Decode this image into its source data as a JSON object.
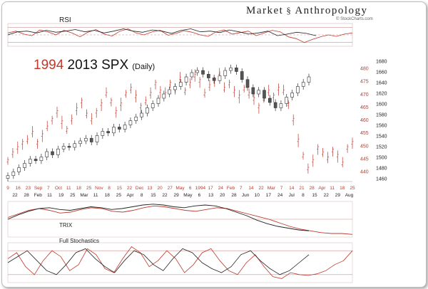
{
  "brand": {
    "left": "Market",
    "right": "Anthropology",
    "source": "© StockCharts.com"
  },
  "colors": {
    "y1994": "#c0392b",
    "y2013": "#222222",
    "grid": "#c9a0a0",
    "candle_up": "#ffffff",
    "candle_down": "#555555"
  },
  "chart_data": [
    {
      "type": "line",
      "title": "RSI",
      "series": [
        {
          "name": "1994",
          "values": [
            55,
            60,
            52,
            48,
            63,
            58,
            50,
            62,
            55,
            45,
            57,
            64,
            52,
            47,
            60,
            66,
            55,
            50,
            58,
            62,
            49,
            54,
            61,
            57,
            50,
            46,
            58,
            63,
            52,
            56,
            60,
            48,
            55,
            62,
            58,
            45,
            40,
            30,
            38,
            45,
            50,
            46,
            52,
            55
          ]
        },
        {
          "name": "2013",
          "values": [
            50,
            58,
            60,
            55,
            62,
            57,
            60,
            64,
            58,
            62,
            55,
            60,
            66,
            60,
            57,
            63,
            60,
            54,
            62,
            66,
            58,
            60,
            56,
            63,
            58,
            52,
            55,
            60,
            48,
            52,
            57,
            54,
            48
          ]
        }
      ],
      "levels": [
        70,
        50,
        30
      ],
      "ylim": [
        20,
        80
      ]
    },
    {
      "type": "candlestick",
      "title_parts": [
        "1994",
        "2013 SPX",
        "(Daily)"
      ],
      "x_ticks_top": [
        "9",
        "16",
        "23",
        "Sep",
        "7",
        "Oct",
        "11",
        "18",
        "25",
        "Nov",
        "8",
        "15",
        "22",
        "Dec",
        "13",
        "20",
        "27",
        "May",
        "6",
        "1994",
        "17",
        "24",
        "Feb",
        "7",
        "14",
        "22",
        "Mar",
        "7",
        "14",
        "21",
        "28",
        "Apr",
        "11",
        "18",
        "25"
      ],
      "x_ticks_bottom": [
        "22",
        "28",
        "Feb",
        "11",
        "19",
        "25",
        "Mar",
        "11",
        "18",
        "25",
        "Apr",
        "8",
        "15",
        "22",
        "29",
        "May",
        "6",
        "13",
        "20",
        "28",
        "Jun",
        "10",
        "17",
        "24",
        "Jul",
        "8",
        "15",
        "22",
        "29",
        "Aug"
      ],
      "y_left": {
        "ticks": [
          480,
          475,
          470,
          465,
          460,
          455,
          450,
          445,
          440
        ],
        "label_series": "1994",
        "ylim": [
          436,
          484
        ]
      },
      "y_right": {
        "ticks": [
          1680,
          1660,
          1640,
          1620,
          1600,
          1580,
          1560,
          1540,
          1520,
          1500,
          1480,
          1460
        ],
        "label_series": "2013",
        "ylim": [
          1454,
          1686
        ]
      },
      "series_1994": [
        444,
        447,
        449,
        451,
        452,
        455,
        451,
        454,
        457,
        460,
        463,
        459,
        456,
        460,
        464,
        467,
        462,
        460,
        463,
        466,
        470,
        467,
        463,
        466,
        470,
        472,
        469,
        465,
        467,
        470,
        474,
        471,
        470,
        474,
        472,
        476,
        471,
        474,
        477,
        475,
        470,
        473,
        475,
        478,
        472,
        474,
        471,
        469,
        472,
        470,
        468,
        465,
        468,
        471,
        469,
        472,
        471,
        466,
        460,
        452,
        446,
        441,
        444,
        449,
        447,
        445,
        448,
        446,
        443,
        449,
        451
      ],
      "series_2013": [
        1465,
        1472,
        1480,
        1488,
        1496,
        1493,
        1500,
        1510,
        1504,
        1515,
        1520,
        1518,
        1525,
        1530,
        1535,
        1528,
        1540,
        1548,
        1545,
        1556,
        1552,
        1560,
        1568,
        1575,
        1582,
        1592,
        1600,
        1610,
        1618,
        1626,
        1632,
        1640,
        1650,
        1658,
        1662,
        1655,
        1648,
        1643,
        1652,
        1662,
        1667,
        1660,
        1645,
        1630,
        1618,
        1625,
        1610,
        1602,
        1592,
        1600,
        1612,
        1620,
        1632,
        1640,
        1650
      ]
    },
    {
      "type": "line",
      "title": "TRIX",
      "series": [
        {
          "name": "1994",
          "values": [
            0.2,
            0.6,
            1.0,
            1.2,
            1.0,
            0.7,
            0.8,
            1.1,
            1.3,
            1.2,
            0.9,
            0.8,
            1.0,
            1.3,
            1.5,
            1.4,
            1.2,
            1.0,
            0.9,
            1.1,
            1.3,
            1.2,
            0.9,
            0.6,
            0.3,
            0.0,
            -0.4,
            -0.8,
            -1.1,
            -1.3,
            -1.5,
            -1.6,
            -1.6,
            -1.7
          ]
        },
        {
          "name": "2013",
          "values": [
            0.0,
            0.5,
            0.9,
            1.2,
            1.3,
            1.1,
            1.0,
            1.2,
            1.4,
            1.3,
            1.1,
            1.2,
            1.4,
            1.6,
            1.7,
            1.6,
            1.4,
            1.3,
            1.5,
            1.6,
            1.5,
            1.2,
            0.8,
            0.4,
            -0.1,
            -0.5,
            -0.8,
            -1.0,
            -1.2,
            -1.3
          ]
        }
      ],
      "levels": [
        0
      ],
      "ylim": [
        -2,
        2
      ]
    },
    {
      "type": "line",
      "title": "Full Stochastics",
      "series": [
        {
          "name": "1994",
          "values": [
            60,
            75,
            40,
            20,
            55,
            80,
            65,
            30,
            45,
            85,
            70,
            35,
            25,
            60,
            90,
            75,
            40,
            55,
            80,
            60,
            25,
            45,
            75,
            85,
            55,
            30,
            20,
            50,
            70,
            40,
            15,
            10,
            25,
            20,
            18,
            22,
            30,
            45,
            55,
            80
          ]
        },
        {
          "name": "2013",
          "values": [
            50,
            65,
            80,
            55,
            30,
            20,
            45,
            75,
            85,
            60,
            40,
            25,
            55,
            80,
            70,
            45,
            30,
            60,
            85,
            75,
            50,
            35,
            25,
            40,
            70,
            80,
            55,
            35,
            20,
            30,
            50,
            70
          ]
        }
      ],
      "levels": [
        80,
        20
      ],
      "ylim": [
        0,
        100
      ]
    }
  ]
}
